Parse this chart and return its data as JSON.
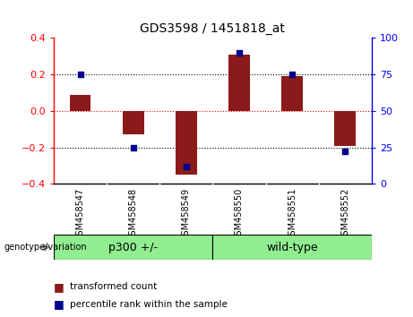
{
  "title": "GDS3598 / 1451818_at",
  "samples": [
    "GSM458547",
    "GSM458548",
    "GSM458549",
    "GSM458550",
    "GSM458551",
    "GSM458552"
  ],
  "red_values": [
    0.09,
    -0.13,
    -0.35,
    0.31,
    0.19,
    -0.19
  ],
  "blue_percentiles": [
    75,
    25,
    12,
    90,
    75,
    22
  ],
  "groups": [
    {
      "label": "p300 +/-",
      "count": 3,
      "color": "#90EE90"
    },
    {
      "label": "wild-type",
      "count": 3,
      "color": "#90EE90"
    }
  ],
  "ylim_left": [
    -0.4,
    0.4
  ],
  "ylim_right": [
    0,
    100
  ],
  "yticks_left": [
    -0.4,
    -0.2,
    0.0,
    0.2,
    0.4
  ],
  "yticks_right": [
    0,
    25,
    50,
    75,
    100
  ],
  "bar_color": "#8B1A1A",
  "dot_color": "#00008B",
  "background_color": "#ffffff",
  "plot_bg": "#ffffff",
  "label_bg": "#d3d3d3",
  "legend_red": "transformed count",
  "legend_blue": "percentile rank within the sample",
  "genotype_label": "genotype/variation",
  "bar_width": 0.4,
  "hline_0_color": "red",
  "hline_other_color": "black",
  "hline_style": "dotted",
  "title_fontsize": 10,
  "tick_fontsize": 8,
  "label_fontsize": 7,
  "legend_fontsize": 7.5
}
